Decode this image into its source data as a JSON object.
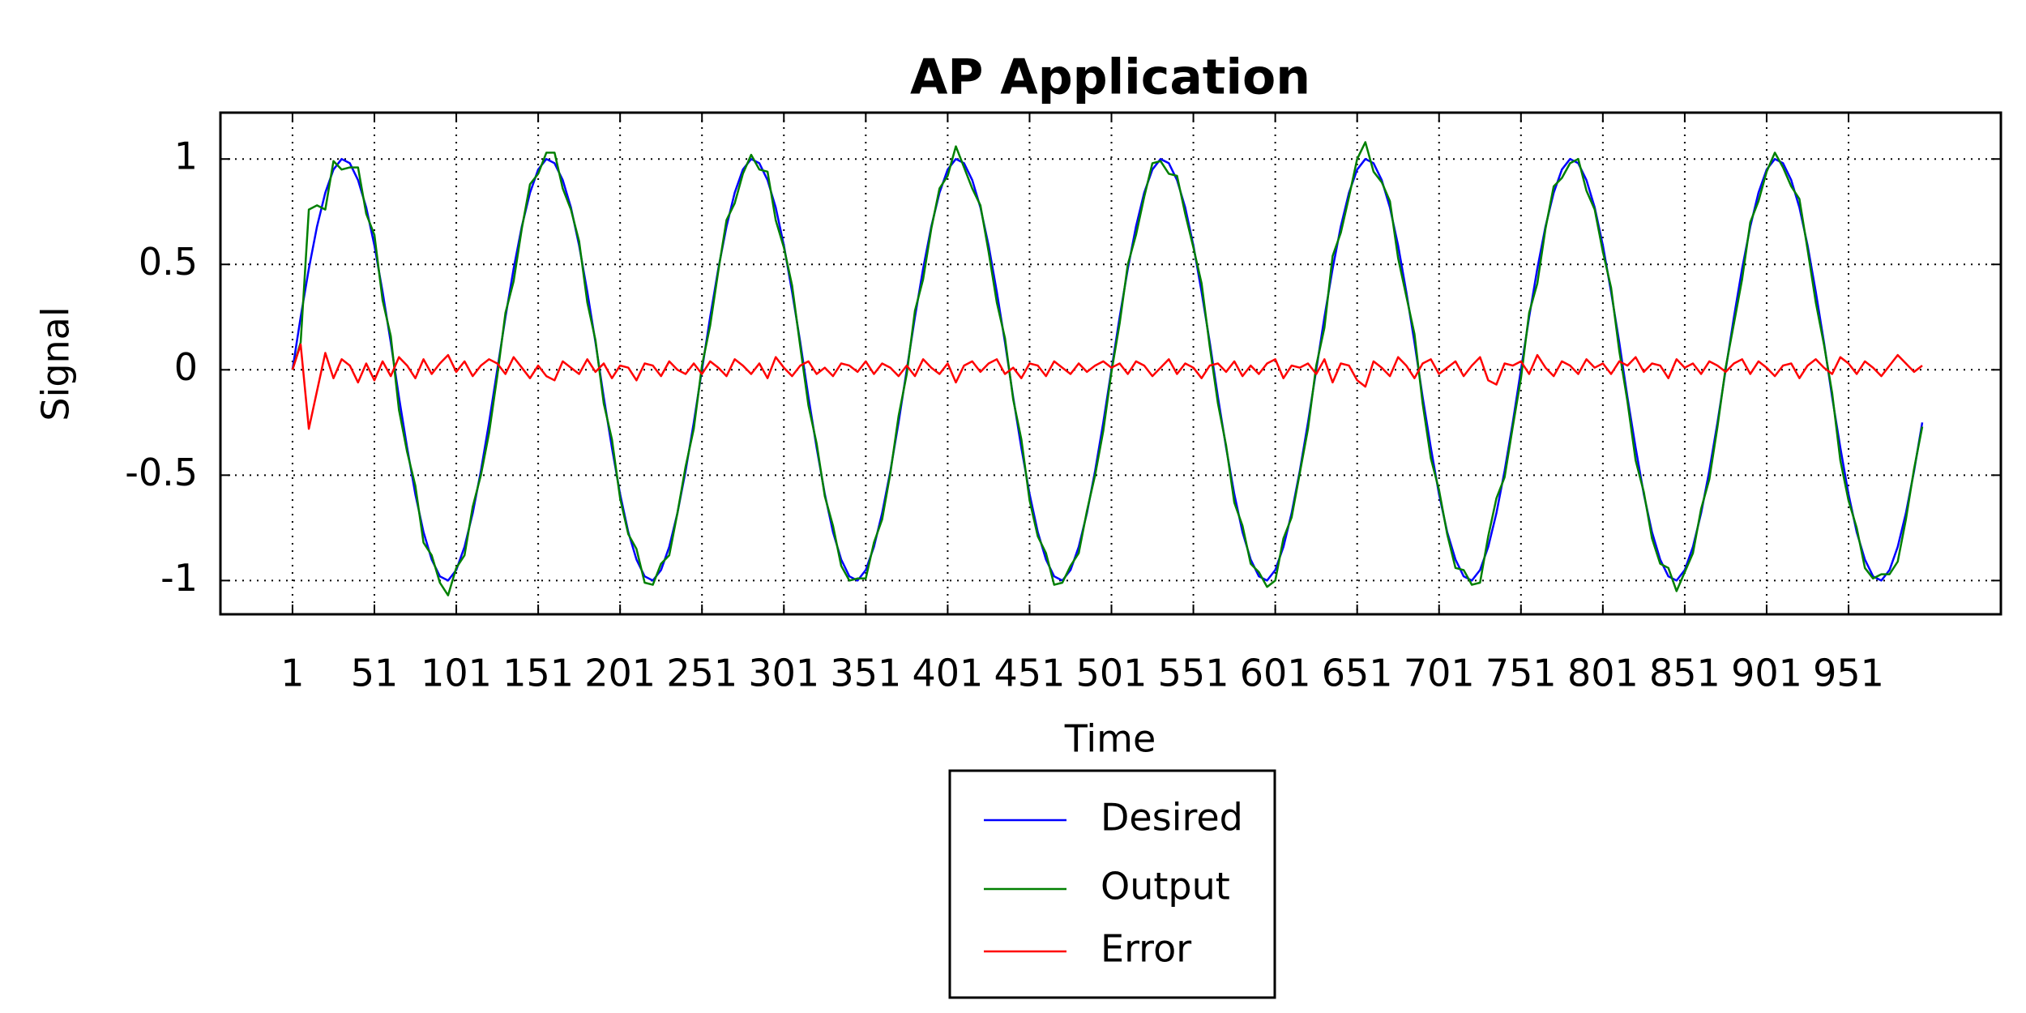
{
  "chart_data": {
    "type": "line",
    "title": "AP Application",
    "xlabel": "Time",
    "ylabel": "Signal",
    "x": [
      1,
      6,
      11,
      16,
      21,
      26,
      31,
      36,
      41,
      46,
      51,
      56,
      61,
      66,
      71,
      76,
      81,
      86,
      91,
      96,
      101,
      106,
      111,
      116,
      121,
      126,
      131,
      136,
      141,
      146,
      151,
      156,
      161,
      166,
      171,
      176,
      181,
      186,
      191,
      196,
      201,
      206,
      211,
      216,
      221,
      226,
      231,
      236,
      241,
      246,
      251,
      256,
      261,
      266,
      271,
      276,
      281,
      286,
      291,
      296,
      301,
      306,
      311,
      316,
      321,
      326,
      331,
      336,
      341,
      346,
      351,
      356,
      361,
      366,
      371,
      376,
      381,
      386,
      391,
      396,
      401,
      406,
      411,
      416,
      421,
      426,
      431,
      436,
      441,
      446,
      451,
      456,
      461,
      466,
      471,
      476,
      481,
      486,
      491,
      496,
      501,
      506,
      511,
      516,
      521,
      526,
      531,
      536,
      541,
      546,
      551,
      556,
      561,
      566,
      571,
      576,
      581,
      586,
      591,
      596,
      601,
      606,
      611,
      616,
      621,
      626,
      631,
      636,
      641,
      646,
      651,
      656,
      661,
      666,
      671,
      676,
      681,
      686,
      691,
      696,
      701,
      706,
      711,
      716,
      721,
      726,
      731,
      736,
      741,
      746,
      751,
      756,
      761,
      766,
      771,
      776,
      781,
      786,
      791,
      796,
      801,
      806,
      811,
      816,
      821,
      826,
      831,
      836,
      841,
      846,
      851,
      856,
      861,
      866,
      871,
      876,
      881,
      886,
      891,
      896,
      901,
      906,
      911,
      916,
      921,
      926,
      931,
      936,
      941,
      946,
      951,
      956,
      961,
      966,
      971,
      976,
      981,
      986,
      991,
      996
    ],
    "series": [
      {
        "name": "Desired",
        "color": "#0000ff",
        "values": [
          0,
          0.25,
          0.48,
          0.68,
          0.84,
          0.95,
          1.0,
          0.98,
          0.9,
          0.77,
          0.59,
          0.37,
          0.13,
          -0.13,
          -0.37,
          -0.59,
          -0.77,
          -0.9,
          -0.98,
          -1.0,
          -0.95,
          -0.84,
          -0.68,
          -0.48,
          -0.25,
          0,
          0.25,
          0.48,
          0.68,
          0.84,
          0.95,
          1.0,
          0.98,
          0.9,
          0.77,
          0.59,
          0.37,
          0.13,
          -0.13,
          -0.37,
          -0.59,
          -0.77,
          -0.9,
          -0.98,
          -1.0,
          -0.95,
          -0.84,
          -0.68,
          -0.48,
          -0.25,
          0,
          0.25,
          0.48,
          0.68,
          0.84,
          0.95,
          1.0,
          0.98,
          0.9,
          0.77,
          0.59,
          0.37,
          0.13,
          -0.13,
          -0.37,
          -0.59,
          -0.77,
          -0.9,
          -0.98,
          -1.0,
          -0.95,
          -0.84,
          -0.68,
          -0.48,
          -0.25,
          0,
          0.25,
          0.48,
          0.68,
          0.84,
          0.95,
          1.0,
          0.98,
          0.9,
          0.77,
          0.59,
          0.37,
          0.13,
          -0.13,
          -0.37,
          -0.59,
          -0.77,
          -0.9,
          -0.98,
          -1.0,
          -0.95,
          -0.84,
          -0.68,
          -0.48,
          -0.25,
          0,
          0.25,
          0.48,
          0.68,
          0.84,
          0.95,
          1.0,
          0.98,
          0.9,
          0.77,
          0.59,
          0.37,
          0.13,
          -0.13,
          -0.37,
          -0.59,
          -0.77,
          -0.9,
          -0.98,
          -1.0,
          -0.95,
          -0.84,
          -0.68,
          -0.48,
          -0.25,
          0,
          0.25,
          0.48,
          0.68,
          0.84,
          0.95,
          1.0,
          0.98,
          0.9,
          0.77,
          0.59,
          0.37,
          0.13,
          -0.13,
          -0.37,
          -0.59,
          -0.77,
          -0.9,
          -0.98,
          -1.0,
          -0.95,
          -0.84,
          -0.68,
          -0.48,
          -0.25,
          0,
          0.25,
          0.48,
          0.68,
          0.84,
          0.95,
          1.0,
          0.98,
          0.9,
          0.77,
          0.59,
          0.37,
          0.13,
          -0.13,
          -0.37,
          -0.59,
          -0.77,
          -0.9,
          -0.98,
          -1.0,
          -0.95,
          -0.84,
          -0.68,
          -0.48,
          -0.25,
          0,
          0.25,
          0.48,
          0.68,
          0.84,
          0.95,
          1.0,
          0.98,
          0.9,
          0.77,
          0.59,
          0.37,
          0.13,
          -0.13,
          -0.37,
          -0.59,
          -0.77,
          -0.9,
          -0.98,
          -1.0,
          -0.95,
          -0.84,
          -0.68,
          -0.48,
          -0.25
        ]
      },
      {
        "name": "Output",
        "color": "#008000",
        "values": [
          0,
          0.13,
          0.76,
          0.78,
          0.76,
          0.99,
          0.95,
          0.96,
          0.96,
          0.74,
          0.64,
          0.33,
          0.16,
          -0.19,
          -0.39,
          -0.55,
          -0.82,
          -0.88,
          -1.01,
          -1.07,
          -0.94,
          -0.88,
          -0.65,
          -0.5,
          -0.3,
          -0.03,
          0.27,
          0.42,
          0.67,
          0.88,
          0.93,
          1.03,
          1.03,
          0.86,
          0.76,
          0.61,
          0.32,
          0.14,
          -0.16,
          -0.33,
          -0.61,
          -0.78,
          -0.85,
          -1.01,
          -1.02,
          -0.92,
          -0.88,
          -0.68,
          -0.46,
          -0.28,
          0.02,
          0.21,
          0.47,
          0.71,
          0.79,
          0.93,
          1.02,
          0.95,
          0.94,
          0.71,
          0.58,
          0.4,
          0.11,
          -0.17,
          -0.35,
          -0.6,
          -0.74,
          -0.93,
          -1.0,
          -0.99,
          -0.99,
          -0.82,
          -0.71,
          -0.49,
          -0.22,
          -0.02,
          0.28,
          0.43,
          0.67,
          0.86,
          0.92,
          1.06,
          0.96,
          0.86,
          0.78,
          0.56,
          0.32,
          0.15,
          -0.14,
          -0.33,
          -0.62,
          -0.79,
          -0.87,
          -1.02,
          -1.01,
          -0.93,
          -0.87,
          -0.67,
          -0.5,
          -0.29,
          -0.01,
          0.22,
          0.5,
          0.64,
          0.82,
          0.98,
          0.99,
          0.93,
          0.92,
          0.74,
          0.58,
          0.41,
          0.11,
          -0.16,
          -0.36,
          -0.63,
          -0.74,
          -0.92,
          -0.96,
          -1.03,
          -1.0,
          -0.8,
          -0.7,
          -0.49,
          -0.28,
          0.02,
          0.2,
          0.54,
          0.65,
          0.82,
          1.0,
          1.08,
          0.94,
          0.89,
          0.8,
          0.53,
          0.35,
          0.17,
          -0.16,
          -0.42,
          -0.57,
          -0.78,
          -0.94,
          -0.95,
          -1.02,
          -1.01,
          -0.79,
          -0.61,
          -0.51,
          -0.27,
          -0.04,
          0.27,
          0.41,
          0.67,
          0.87,
          0.91,
          0.98,
          1.0,
          0.85,
          0.76,
          0.56,
          0.39,
          0.09,
          -0.15,
          -0.43,
          -0.58,
          -0.8,
          -0.92,
          -0.94,
          -1.05,
          -0.96,
          -0.87,
          -0.66,
          -0.52,
          -0.27,
          0.01,
          0.22,
          0.43,
          0.7,
          0.8,
          0.94,
          1.03,
          0.96,
          0.87,
          0.81,
          0.57,
          0.32,
          0.12,
          -0.11,
          -0.43,
          -0.62,
          -0.75,
          -0.94,
          -0.99,
          -0.97,
          -0.97,
          -0.91,
          -0.71,
          -0.47,
          -0.27
        ]
      },
      {
        "name": "Error",
        "color": "#ff0000",
        "values": [
          0,
          0.12,
          -0.28,
          -0.1,
          0.08,
          -0.04,
          0.05,
          0.02,
          -0.06,
          0.03,
          -0.05,
          0.04,
          -0.03,
          0.06,
          0.02,
          -0.04,
          0.05,
          -0.02,
          0.03,
          0.07,
          -0.01,
          0.04,
          -0.03,
          0.02,
          0.05,
          0.03,
          -0.02,
          0.06,
          0.01,
          -0.04,
          0.02,
          -0.03,
          -0.05,
          0.04,
          0.01,
          -0.02,
          0.05,
          -0.01,
          0.03,
          -0.04,
          0.02,
          0.01,
          -0.05,
          0.03,
          0.02,
          -0.03,
          0.04,
          0,
          -0.02,
          0.03,
          -0.02,
          0.04,
          0.01,
          -0.03,
          0.05,
          0.02,
          -0.02,
          0.03,
          -0.04,
          0.06,
          0.01,
          -0.03,
          0.02,
          0.04,
          -0.02,
          0.01,
          -0.03,
          0.03,
          0.02,
          -0.01,
          0.04,
          -0.02,
          0.03,
          0.01,
          -0.03,
          0.02,
          -0.03,
          0.05,
          0.01,
          -0.02,
          0.03,
          -0.06,
          0.02,
          0.04,
          -0.01,
          0.03,
          0.05,
          -0.02,
          0.01,
          -0.04,
          0.03,
          0.02,
          -0.03,
          0.04,
          0.01,
          -0.02,
          0.03,
          -0.01,
          0.02,
          0.04,
          0.01,
          0.03,
          -0.02,
          0.04,
          0.02,
          -0.03,
          0.01,
          0.05,
          -0.02,
          0.03,
          0.01,
          -0.04,
          0.02,
          0.03,
          -0.01,
          0.04,
          -0.03,
          0.02,
          -0.02,
          0.03,
          0.05,
          -0.04,
          0.02,
          0.01,
          0.03,
          -0.02,
          0.05,
          -0.06,
          0.03,
          0.02,
          -0.05,
          -0.08,
          0.04,
          0.01,
          -0.03,
          0.06,
          0.02,
          -0.04,
          0.03,
          0.05,
          -0.02,
          0.01,
          0.04,
          -0.03,
          0.02,
          0.06,
          -0.05,
          -0.07,
          0.03,
          0.02,
          0.04,
          -0.02,
          0.07,
          0.01,
          -0.03,
          0.04,
          0.02,
          -0.02,
          0.05,
          0.01,
          0.03,
          -0.02,
          0.04,
          0.02,
          0.06,
          -0.01,
          0.03,
          0.02,
          -0.04,
          0.05,
          0.01,
          0.03,
          -0.02,
          0.04,
          0.02,
          -0.01,
          0.03,
          0.05,
          -0.02,
          0.04,
          0.01,
          -0.03,
          0.02,
          0.03,
          -0.04,
          0.02,
          0.05,
          0.01,
          -0.02,
          0.06,
          0.03,
          -0.02,
          0.04,
          0.01,
          -0.03,
          0.02,
          0.07,
          0.03,
          -0.01,
          0.02
        ]
      }
    ],
    "xlim": [
      -43,
      1044
    ],
    "xticks": [
      1,
      51,
      101,
      151,
      201,
      251,
      301,
      351,
      401,
      451,
      501,
      551,
      601,
      651,
      701,
      751,
      801,
      851,
      901,
      951
    ],
    "ylim": [
      -1.16,
      1.22
    ],
    "yticks": [
      -1,
      -0.5,
      0,
      0.5,
      1
    ],
    "grid": true,
    "legend": "below"
  }
}
